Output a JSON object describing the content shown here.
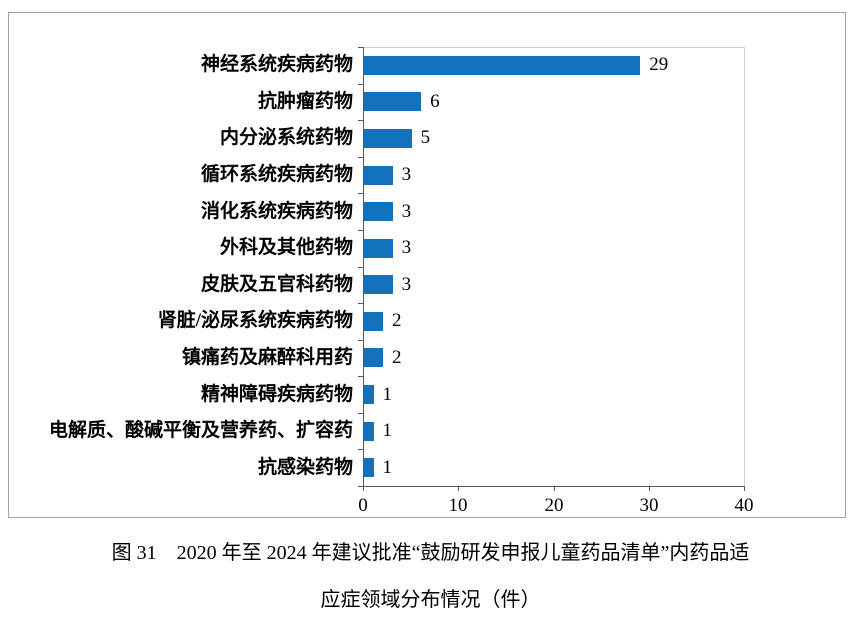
{
  "chart_data": {
    "type": "bar",
    "orientation": "horizontal",
    "title": "",
    "xlabel": "",
    "ylabel": "",
    "categories": [
      "神经系统疾病药物",
      "抗肿瘤药物",
      "内分泌系统药物",
      "循环系统疾病药物",
      "消化系统疾病药物",
      "外科及其他药物",
      "皮肤及五官科药物",
      "肾脏/泌尿系统疾病药物",
      "镇痛药及麻醉科用药",
      "精神障碍疾病药物",
      "电解质、酸碱平衡及营养药、扩容药",
      "抗感染药物"
    ],
    "values": [
      29,
      6,
      5,
      3,
      3,
      3,
      3,
      2,
      2,
      1,
      1,
      1
    ],
    "xlim": [
      0,
      40
    ],
    "xticks": [
      0,
      10,
      20,
      30,
      40
    ],
    "bar_color": "#1272bc",
    "grid": false,
    "legend": "none"
  },
  "caption": {
    "line1": "图 31　2020 年至 2024 年建议批准“鼓励研发申报儿童药品清单”内药品适",
    "line2": "应症领域分布情况（件）"
  }
}
